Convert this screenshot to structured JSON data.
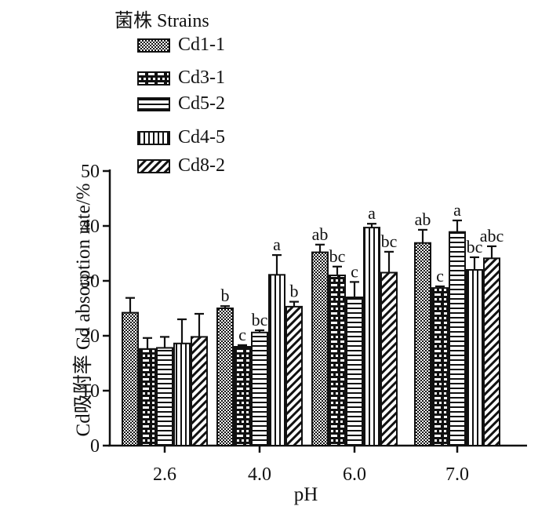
{
  "chart_data": {
    "type": "bar",
    "legend_title": "菌株 Strains",
    "xlabel": "pH",
    "ylabel": "Cd吸附率  Cd absorption rate/%",
    "categories": [
      "2.6",
      "4.0",
      "6.0",
      "7.0"
    ],
    "ylim": [
      0,
      50
    ],
    "yticks": [
      0,
      10,
      20,
      30,
      40,
      50
    ],
    "legend_position": "top-left",
    "series": [
      {
        "name": "Cd1-1",
        "pattern": "checker",
        "values": [
          24.2,
          25.0,
          35.2,
          36.9
        ],
        "errors": [
          2.7,
          0.4,
          1.4,
          2.4
        ],
        "letters": [
          "",
          "b",
          "ab",
          "ab"
        ]
      },
      {
        "name": "Cd3-1",
        "pattern": "crosshatch",
        "values": [
          17.6,
          18.0,
          31.0,
          28.7
        ],
        "errors": [
          2.0,
          0.3,
          1.6,
          0.3
        ],
        "letters": [
          "",
          "c",
          "bc",
          "c"
        ]
      },
      {
        "name": "Cd5-2",
        "pattern": "horizontal",
        "values": [
          17.8,
          20.6,
          27.0,
          38.9
        ],
        "errors": [
          2.0,
          0.4,
          2.8,
          2.1
        ],
        "letters": [
          "",
          "bc",
          "c",
          "a"
        ]
      },
      {
        "name": "Cd4-5",
        "pattern": "vertical",
        "values": [
          18.6,
          31.1,
          39.7,
          32.0
        ],
        "errors": [
          4.4,
          3.6,
          0.7,
          2.3
        ],
        "letters": [
          "",
          "a",
          "a",
          "bc"
        ]
      },
      {
        "name": "Cd8-2",
        "pattern": "diagonal",
        "values": [
          19.8,
          25.3,
          31.5,
          34.1
        ],
        "errors": [
          4.2,
          0.9,
          3.8,
          2.2
        ],
        "letters": [
          "",
          "b",
          "bc",
          "abc"
        ]
      }
    ]
  }
}
